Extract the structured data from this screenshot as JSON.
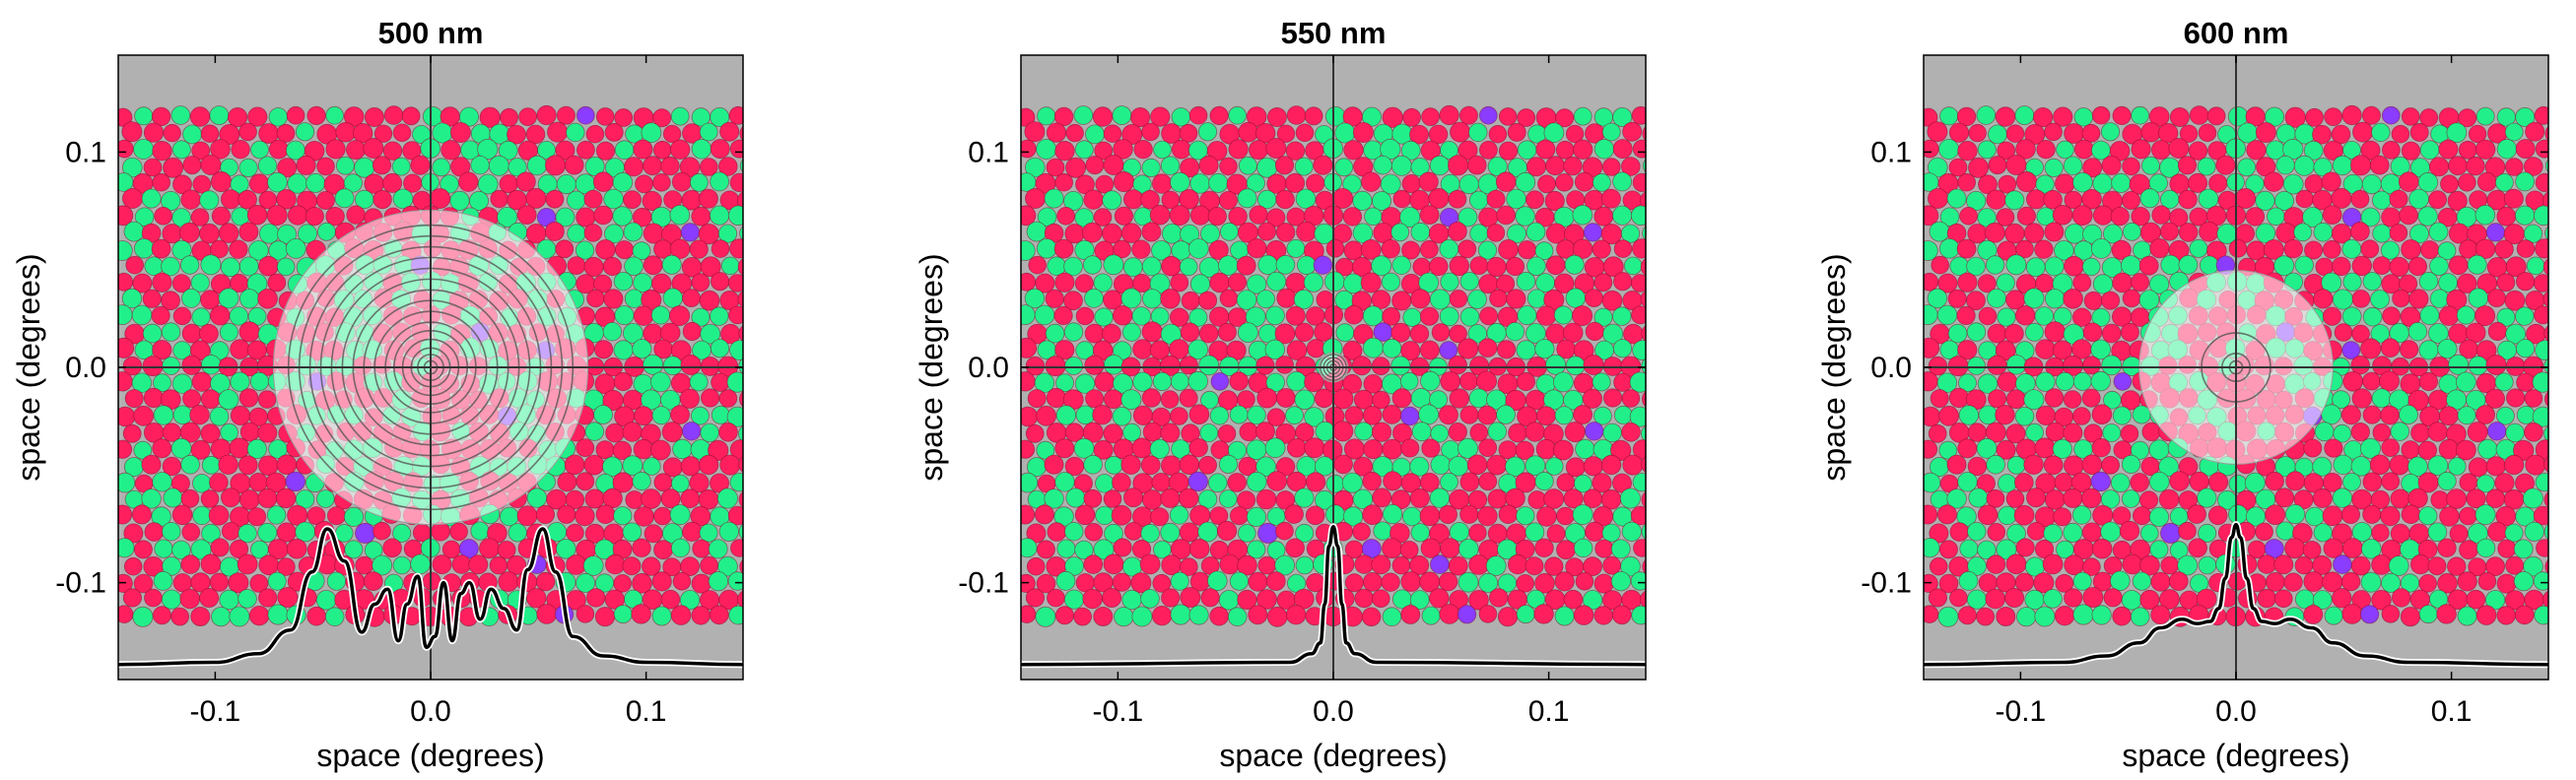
{
  "colors": {
    "background": "#b1b1b1",
    "L_cone": "#ff1f5e",
    "M_cone": "#21f08a",
    "S_cone": "#8a3cff",
    "cone_outline": "#7a0a2a",
    "psf_overlay": "#ffffff",
    "profile": "#000000"
  },
  "chart_data": [
    {
      "type": "heatmap",
      "title": "500 nm",
      "xlabel": "space (degrees)",
      "ylabel": "space (degrees)",
      "xlim": [
        -0.145,
        0.145
      ],
      "ylim": [
        -0.145,
        0.145
      ],
      "xticks": [
        "-0.1",
        "0.0",
        "0.1"
      ],
      "yticks": [
        "0.1",
        "0.0",
        "-0.1"
      ],
      "xtick_values": [
        -0.1,
        0.0,
        0.1
      ],
      "ytick_values": [
        0.1,
        0.0,
        -0.1
      ],
      "mosaic_extent_y": [
        -0.12,
        0.12
      ],
      "psf_radius": 0.073,
      "psf_contour_radii": [
        0.003,
        0.006,
        0.009,
        0.013,
        0.017,
        0.021,
        0.026,
        0.031,
        0.036,
        0.041,
        0.046,
        0.051,
        0.056,
        0.061,
        0.066
      ],
      "profile": {
        "x": [
          -0.145,
          -0.1,
          -0.08,
          -0.065,
          -0.055,
          -0.048,
          -0.04,
          -0.032,
          -0.026,
          -0.02,
          -0.015,
          -0.011,
          -0.006,
          -0.002,
          0.002,
          0.006,
          0.01,
          0.014,
          0.018,
          0.023,
          0.028,
          0.034,
          0.04,
          0.045,
          0.052,
          0.058,
          0.066,
          0.08,
          0.1,
          0.145
        ],
        "y": [
          -0.138,
          -0.137,
          -0.133,
          -0.122,
          -0.095,
          -0.075,
          -0.09,
          -0.123,
          -0.11,
          -0.103,
          -0.127,
          -0.11,
          -0.097,
          -0.13,
          -0.125,
          -0.1,
          -0.127,
          -0.105,
          -0.1,
          -0.117,
          -0.103,
          -0.112,
          -0.122,
          -0.094,
          -0.075,
          -0.095,
          -0.125,
          -0.134,
          -0.137,
          -0.138
        ]
      }
    },
    {
      "type": "heatmap",
      "title": "550 nm",
      "xlabel": "space (degrees)",
      "ylabel": "space (degrees)",
      "xlim": [
        -0.145,
        0.145
      ],
      "ylim": [
        -0.145,
        0.145
      ],
      "xticks": [
        "-0.1",
        "0.0",
        "0.1"
      ],
      "yticks": [
        "0.1",
        "0.0",
        "-0.1"
      ],
      "xtick_values": [
        -0.1,
        0.0,
        0.1
      ],
      "ytick_values": [
        0.1,
        0.0,
        -0.1
      ],
      "mosaic_extent_y": [
        -0.12,
        0.12
      ],
      "psf_radius": 0.0068,
      "psf_contour_radii": [
        0.0015,
        0.003,
        0.0045,
        0.006
      ],
      "profile": {
        "x": [
          -0.145,
          -0.02,
          -0.01,
          -0.006,
          -0.004,
          -0.002,
          0.0,
          0.002,
          0.004,
          0.006,
          0.01,
          0.02,
          0.145
        ],
        "y": [
          -0.138,
          -0.137,
          -0.133,
          -0.128,
          -0.11,
          -0.083,
          -0.074,
          -0.083,
          -0.11,
          -0.128,
          -0.133,
          -0.137,
          -0.138
        ]
      }
    },
    {
      "type": "heatmap",
      "title": "600 nm",
      "xlabel": "space (degrees)",
      "ylabel": "space (degrees)",
      "xlim": [
        -0.145,
        0.145
      ],
      "ylim": [
        -0.145,
        0.145
      ],
      "xticks": [
        "-0.1",
        "0.0",
        "0.1"
      ],
      "yticks": [
        "0.1",
        "0.0",
        "-0.1"
      ],
      "xtick_values": [
        -0.1,
        0.0,
        0.1
      ],
      "ytick_values": [
        0.1,
        0.0,
        -0.1
      ],
      "mosaic_extent_y": [
        -0.12,
        0.12
      ],
      "psf_radius": 0.045,
      "psf_contour_radii": [
        0.003,
        0.0065,
        0.016
      ],
      "profile": {
        "x": [
          -0.145,
          -0.08,
          -0.06,
          -0.045,
          -0.035,
          -0.025,
          -0.018,
          -0.012,
          -0.008,
          -0.005,
          -0.002,
          0.0,
          0.002,
          0.005,
          0.008,
          0.012,
          0.018,
          0.025,
          0.035,
          0.045,
          0.06,
          0.08,
          0.145
        ],
        "y": [
          -0.138,
          -0.137,
          -0.134,
          -0.128,
          -0.121,
          -0.117,
          -0.119,
          -0.118,
          -0.112,
          -0.098,
          -0.079,
          -0.073,
          -0.079,
          -0.098,
          -0.112,
          -0.118,
          -0.119,
          -0.117,
          -0.121,
          -0.128,
          -0.134,
          -0.137,
          -0.138
        ]
      }
    }
  ]
}
